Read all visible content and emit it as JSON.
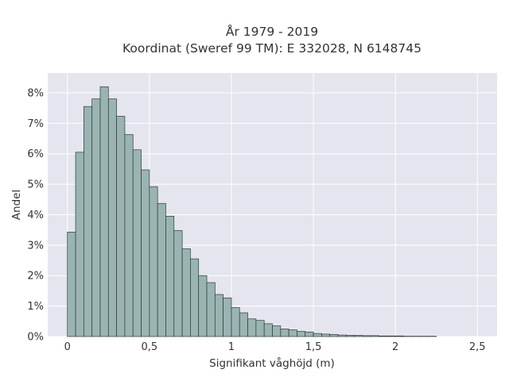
{
  "chart_data": {
    "type": "bar",
    "title": "År 1979 - 2019",
    "subtitle": "Koordinat (Sweref 99 TM): E 332028, N 6148745",
    "xlabel": "Signifikant våghöjd (m)",
    "ylabel": "Andel",
    "xlim": [
      -0.12,
      2.62
    ],
    "ylim": [
      0,
      0.0865
    ],
    "x_ticks": [
      0,
      0.5,
      1,
      1.5,
      2,
      2.5
    ],
    "x_tick_labels": [
      "0",
      "0,5",
      "1",
      "1,5",
      "2",
      "2,5"
    ],
    "y_ticks": [
      0,
      0.01,
      0.02,
      0.03,
      0.04,
      0.05,
      0.06,
      0.07,
      0.08
    ],
    "y_tick_labels": [
      "0%",
      "1%",
      "2%",
      "3%",
      "4%",
      "5%",
      "6%",
      "7%",
      "8%"
    ],
    "bin_width": 0.05,
    "bin_start": 0,
    "values": [
      0.0343,
      0.0605,
      0.0755,
      0.078,
      0.082,
      0.078,
      0.0723,
      0.0663,
      0.0613,
      0.0547,
      0.0492,
      0.0437,
      0.0395,
      0.0348,
      0.0288,
      0.0255,
      0.02,
      0.0177,
      0.0138,
      0.0127,
      0.0095,
      0.0078,
      0.0058,
      0.0053,
      0.0042,
      0.0035,
      0.0025,
      0.0022,
      0.0017,
      0.0015,
      0.001,
      0.0008,
      0.0007,
      0.0005,
      0.0004,
      0.0004,
      0.0003,
      0.0003,
      0.0002,
      0.0002,
      0.0002,
      0.0001,
      0.0001,
      0.0001,
      0.0001
    ],
    "grid": true,
    "colors": {
      "bar_fill": "#9ab4b2",
      "bar_stroke": "#2f3a39",
      "plot_bg": "#e5e5ef",
      "grid": "#ffffff"
    }
  }
}
